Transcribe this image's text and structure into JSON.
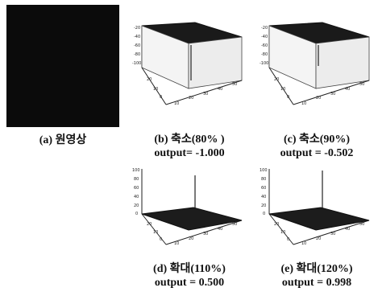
{
  "figure": {
    "original": {
      "caption": "(a) 원영상"
    },
    "panels": [
      {
        "id": "b",
        "caption": "(b) 축소(80% )",
        "output": "output= -1.000",
        "surface": "flat-top-spike-down"
      },
      {
        "id": "c",
        "caption": "(c) 축소(90%)",
        "output": "output = -0.502",
        "surface": "flat-top-spike-down"
      },
      {
        "id": "d",
        "caption": "(d) 확대(110%)",
        "output": "output = 0.500",
        "surface": "flat-bottom-spike-up"
      },
      {
        "id": "e",
        "caption": "(e) 확대(120%)",
        "output": "output = 0.998",
        "surface": "flat-bottom-spike-up"
      }
    ]
  }
}
